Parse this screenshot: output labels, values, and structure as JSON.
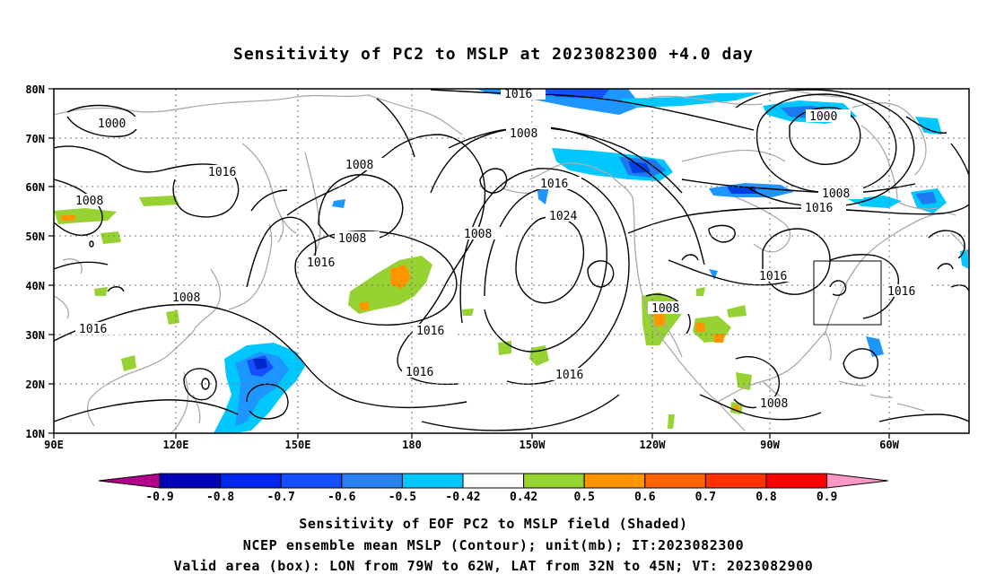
{
  "title": "Sensitivity of PC2 to MSLP at 2023082300 +4.0 day",
  "map": {
    "lon_labels": [
      "90E",
      "120E",
      "150E",
      "180",
      "150W",
      "120W",
      "90W",
      "60W"
    ],
    "lat_labels": [
      "80N",
      "70N",
      "60N",
      "50N",
      "40N",
      "30N",
      "20N",
      "10N"
    ],
    "contour_labels": [
      "1016",
      "1008",
      "1000",
      "1016",
      "1008",
      "1008",
      "1008",
      "1016",
      "1016",
      "1024",
      "1008",
      "1016",
      "1016",
      "1016",
      "1008",
      "1000",
      "1008",
      "1016",
      "1016",
      "1016",
      "1008",
      "1016",
      "1008"
    ],
    "box": {
      "lon_from": "79W",
      "lon_to": "62W",
      "lat_from": "32N",
      "lat_to": "45N"
    }
  },
  "colorbar": {
    "labels": [
      "-0.9",
      "-0.8",
      "-0.7",
      "-0.6",
      "-0.5",
      "-0.42",
      "0.42",
      "0.5",
      "0.6",
      "0.7",
      "0.8",
      "0.9"
    ],
    "colors": [
      "#b4008c",
      "#0000b4",
      "#0028f0",
      "#1450ff",
      "#2882f0",
      "#00c8ff",
      "#ffffff",
      "#96d232",
      "#ff9600",
      "#ff6400",
      "#ff3200",
      "#ff0000",
      "#ff96c8"
    ]
  },
  "footer": {
    "line1": "Sensitivity of EOF PC2 to MSLP field (Shaded)",
    "line2": "NCEP ensemble mean MSLP (Contour); unit(mb); IT:2023082300",
    "line3": "Valid area (box): LON from 79W to 62W, LAT from 32N to 45N; VT: 2023082900"
  }
}
